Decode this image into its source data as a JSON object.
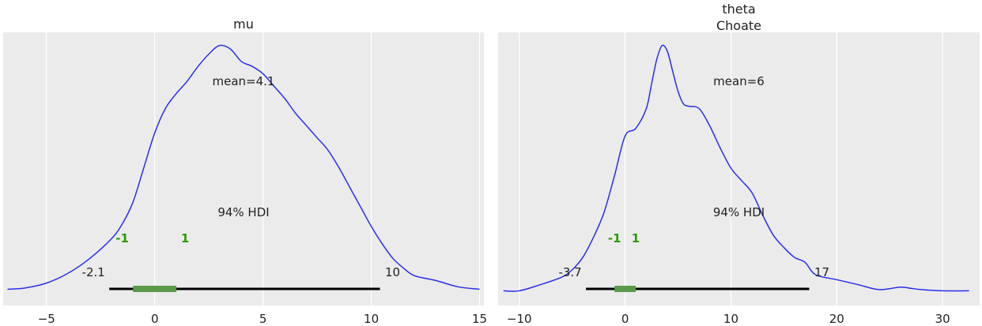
{
  "chart_data": [
    {
      "type": "line",
      "title": "mu",
      "xlim": [
        -7.0,
        15.2
      ],
      "xticks": [
        -5,
        0,
        5,
        10,
        15
      ],
      "xtick_labels": [
        "−5",
        "0",
        "5",
        "10",
        "15"
      ],
      "ylim": [
        0,
        1.0
      ],
      "grid": true,
      "series": [
        {
          "x": [
            -6.8,
            -6.0,
            -5.0,
            -4.0,
            -3.0,
            -2.0,
            -1.5,
            -1.0,
            -0.5,
            0.0,
            0.5,
            1.0,
            1.5,
            2.0,
            2.5,
            3.0,
            3.5,
            4.0,
            4.5,
            5.0,
            5.5,
            6.0,
            6.5,
            7.0,
            7.5,
            8.0,
            8.5,
            9.0,
            9.5,
            10.0,
            10.5,
            11.0,
            11.5,
            12.0,
            13.0,
            14.0,
            15.0
          ],
          "y": [
            0.005,
            0.01,
            0.03,
            0.07,
            0.13,
            0.21,
            0.27,
            0.36,
            0.5,
            0.64,
            0.74,
            0.8,
            0.85,
            0.91,
            0.96,
            0.995,
            0.98,
            0.93,
            0.91,
            0.88,
            0.83,
            0.78,
            0.72,
            0.67,
            0.62,
            0.57,
            0.5,
            0.42,
            0.34,
            0.26,
            0.19,
            0.13,
            0.09,
            0.06,
            0.04,
            0.015,
            0.005
          ]
        }
      ],
      "mean_label": "mean=4.1",
      "hdi_label": "94% HDI",
      "hdi": [
        -2.1,
        10.4
      ],
      "hdi_low_label": "-2.1",
      "hdi_high_label": "10",
      "iqr": [
        -1.0,
        1.0
      ],
      "marker_labels": [
        {
          "x": -1.5,
          "label": "-1"
        },
        {
          "x": 1.4,
          "label": "1"
        }
      ]
    },
    {
      "type": "line",
      "title": "theta",
      "subtitle": "Choate",
      "xlim": [
        -12.0,
        33.5
      ],
      "xticks": [
        -10,
        0,
        10,
        20,
        30
      ],
      "xtick_labels": [
        "−10",
        "0",
        "10",
        "20",
        "30"
      ],
      "ylim": [
        0,
        1.0
      ],
      "grid": true,
      "series": [
        {
          "x": [
            -11.5,
            -10.0,
            -8.0,
            -6.0,
            -5.0,
            -4.0,
            -3.0,
            -2.0,
            -1.0,
            0.0,
            1.0,
            2.0,
            2.5,
            3.0,
            3.5,
            4.0,
            4.5,
            5.0,
            5.5,
            6.0,
            7.0,
            8.0,
            9.0,
            10.0,
            11.0,
            12.0,
            13.0,
            14.0,
            15.0,
            16.0,
            17.0,
            18.0,
            20.0,
            22.0,
            24.0,
            26.0,
            27.0,
            28.0,
            30.0,
            32.5
          ],
          "y": [
            0.005,
            0.005,
            0.03,
            0.06,
            0.09,
            0.14,
            0.22,
            0.32,
            0.47,
            0.63,
            0.66,
            0.74,
            0.84,
            0.94,
            0.995,
            0.97,
            0.89,
            0.81,
            0.76,
            0.75,
            0.74,
            0.67,
            0.58,
            0.5,
            0.45,
            0.4,
            0.31,
            0.23,
            0.18,
            0.14,
            0.12,
            0.07,
            0.05,
            0.03,
            0.01,
            0.02,
            0.015,
            0.01,
            0.005,
            0.005
          ]
        }
      ],
      "mean_label": "mean=6",
      "hdi_label": "94% HDI",
      "hdi": [
        -3.7,
        17.4
      ],
      "hdi_low_label": "-3.7",
      "hdi_high_label": "17",
      "iqr": [
        -1.0,
        1.0
      ],
      "marker_labels": [
        {
          "x": -1.0,
          "label": "-1"
        },
        {
          "x": 1.0,
          "label": "1"
        }
      ]
    }
  ]
}
